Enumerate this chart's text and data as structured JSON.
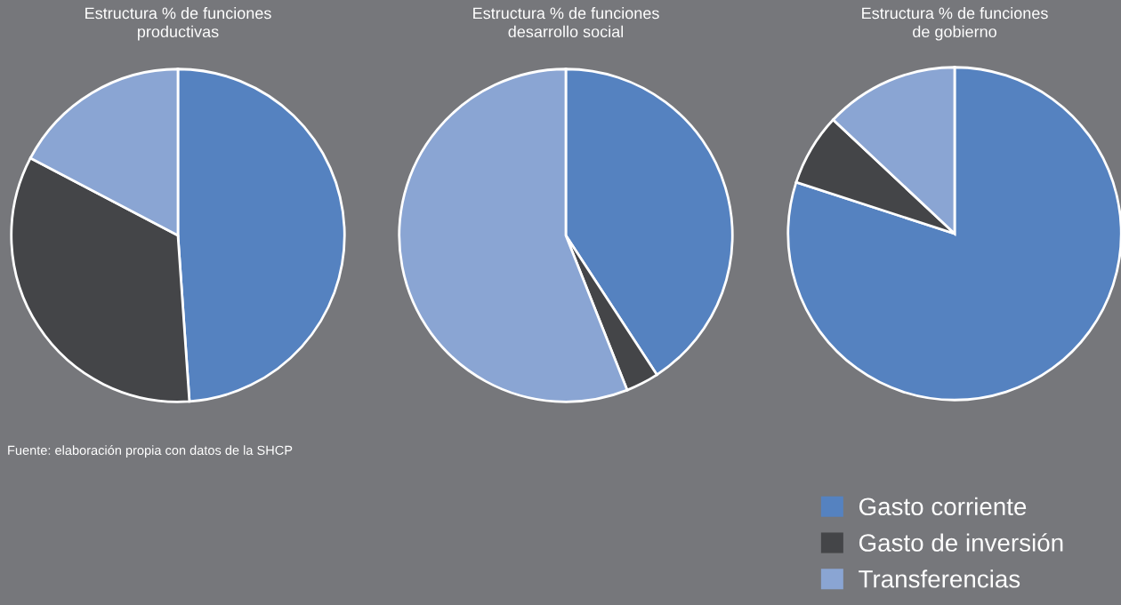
{
  "chart_data": [
    {
      "type": "pie",
      "title": "Estructura % de funciones\nproductivas",
      "categories": [
        null,
        null,
        null
      ],
      "values": [
        48.9,
        33.8,
        17.3
      ],
      "colors": [
        "#5582c0",
        "#444548",
        "#8aa5d3"
      ],
      "annotations": [
        "Fuente: elaboración propia con datos de la SHCP"
      ]
    },
    {
      "type": "pie",
      "title": "Estructura % de funciones\ndesarrollo social",
      "categories": [
        null,
        null,
        null
      ],
      "values": [
        40.8,
        3.2,
        56.0
      ],
      "colors": [
        "#5582c0",
        "#444548",
        "#8aa5d3"
      ]
    },
    {
      "type": "pie",
      "title": "Estructura % de funciones\nde gobierno",
      "categories": [
        "Gasto corriente",
        "Gasto de inversión",
        "Transferencias"
      ],
      "values": [
        80.0,
        7.0,
        13.0
      ],
      "colors": [
        "#5582c0",
        "#444548",
        "#8aa5d3"
      ],
      "legend": "bottom right"
    }
  ]
}
